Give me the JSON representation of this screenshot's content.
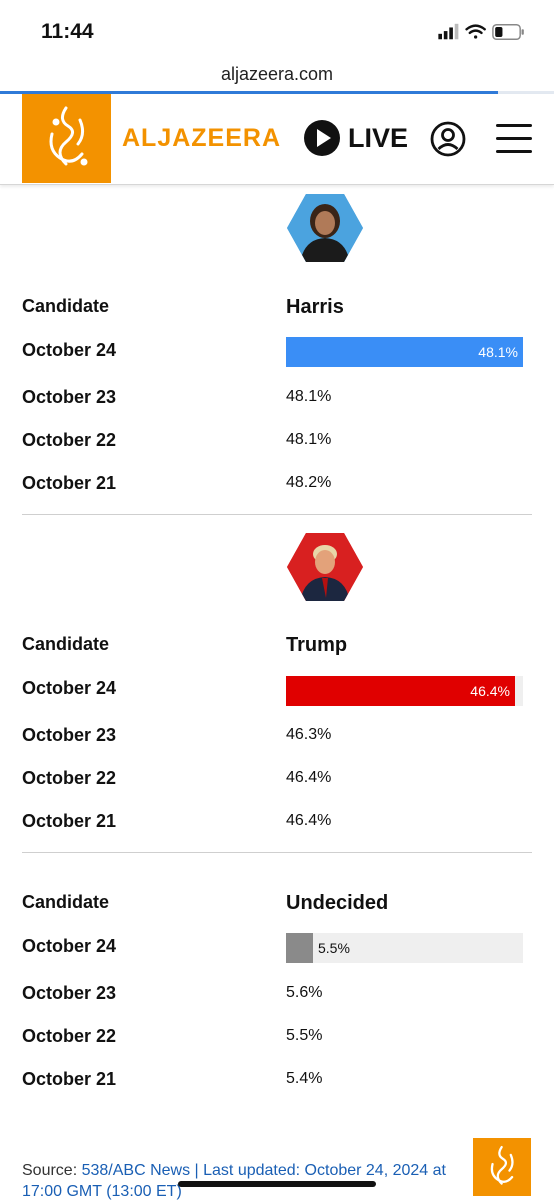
{
  "status_bar": {
    "time": "11:44"
  },
  "browser": {
    "url": "aljazeera.com"
  },
  "header": {
    "brand": "ALJAZEERA",
    "live_label": "LIVE"
  },
  "colors": {
    "brand_orange": "#f39200",
    "harris_blue": "#3a8ef6",
    "trump_red": "#e00000",
    "undecided_gray": "#8a8a8a"
  },
  "candidates": [
    {
      "label": "Candidate",
      "name": "Harris",
      "rows": [
        {
          "date": "October 24",
          "value": "48.1%",
          "fraction": 1.0
        },
        {
          "date": "October 23",
          "value": "48.1%"
        },
        {
          "date": "October 22",
          "value": "48.1%"
        },
        {
          "date": "October 21",
          "value": "48.2%"
        }
      ]
    },
    {
      "label": "Candidate",
      "name": "Trump",
      "rows": [
        {
          "date": "October 24",
          "value": "46.4%",
          "fraction": 0.965
        },
        {
          "date": "October 23",
          "value": "46.3%"
        },
        {
          "date": "October 22",
          "value": "46.4%"
        },
        {
          "date": "October 21",
          "value": "46.4%"
        }
      ]
    },
    {
      "label": "Candidate",
      "name": "Undecided",
      "rows": [
        {
          "date": "October 24",
          "value": "5.5%",
          "fraction": 0.114
        },
        {
          "date": "October 23",
          "value": "5.6%"
        },
        {
          "date": "October 22",
          "value": "5.5%"
        },
        {
          "date": "October 21",
          "value": "5.4%"
        }
      ]
    }
  ],
  "source": {
    "prefix": "Source: ",
    "link": "538/ABC News | Last updated: October 24, 2024 at 17:00 GMT (13:00 ET)"
  }
}
